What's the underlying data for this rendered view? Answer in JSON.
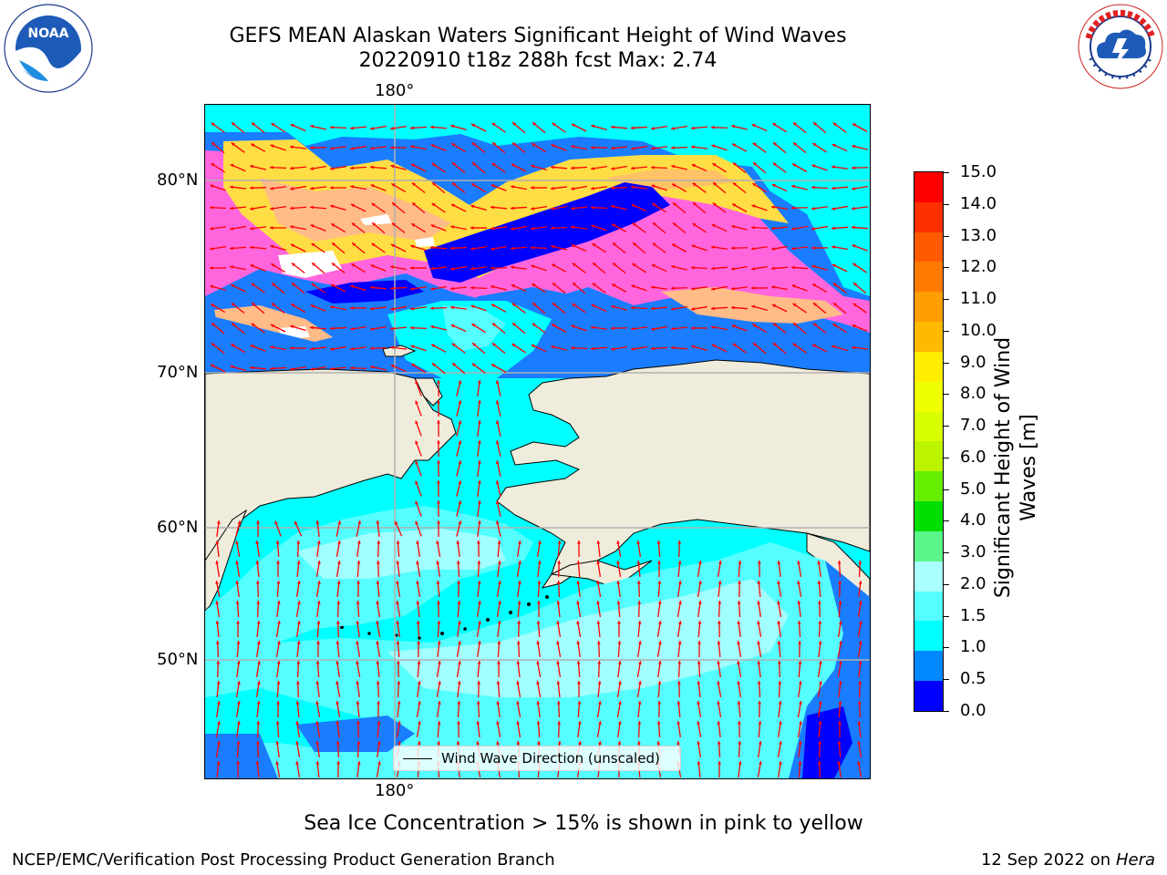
{
  "header": {
    "title_line1": "GEFS MEAN Alaskan Waters Significant Height of Wind Waves",
    "title_line2": "20220910 t18z 288h fcst   Max: 2.74"
  },
  "logos": {
    "noaa": {
      "text": "NOAA",
      "ring_text": "NATIONAL OCEANIC AND ATMOSPHERIC ADMINISTRATION · U.S. DEPARTMENT OF COMMERCE"
    },
    "nws": {
      "ring_text": "NATIONAL WEATHER SERVICE"
    }
  },
  "map": {
    "lon_label_top": "180°",
    "lon_label_bottom": "180°",
    "lat_labels": [
      "80°N",
      "70°N",
      "60°N",
      "50°N"
    ],
    "legend": "Wind Wave Direction (unscaled)",
    "colors": {
      "land": "#efecdc",
      "arrow": "#ff0000",
      "grid": "#b0b0b0"
    }
  },
  "colorbar": {
    "title_line1": "Significant Height of Wind",
    "title_line2": "Waves [m]",
    "ticks": [
      "15.0",
      "14.0",
      "13.0",
      "12.0",
      "11.0",
      "10.0",
      "9.0",
      "8.0",
      "7.0",
      "6.0",
      "5.0",
      "4.0",
      "3.0",
      "2.0",
      "1.5",
      "1.0",
      "0.5",
      "0.0"
    ],
    "colors": [
      "#ff0000",
      "#ff3000",
      "#ff5a00",
      "#ff7a00",
      "#ff9e00",
      "#ffba00",
      "#ffee00",
      "#f0ff00",
      "#d8ff00",
      "#bcf400",
      "#66ee00",
      "#00dd00",
      "#5cf58a",
      "#aaffff",
      "#55ffff",
      "#00ffff",
      "#0088ff",
      "#0000ff"
    ]
  },
  "caption": "Sea Ice Concentration > 15% is shown in pink to yellow",
  "footer": {
    "left": "NCEP/EMC/Verification Post Processing Product Generation Branch",
    "right_date": "12 Sep 2022 on",
    "right_machine": "Hera"
  }
}
